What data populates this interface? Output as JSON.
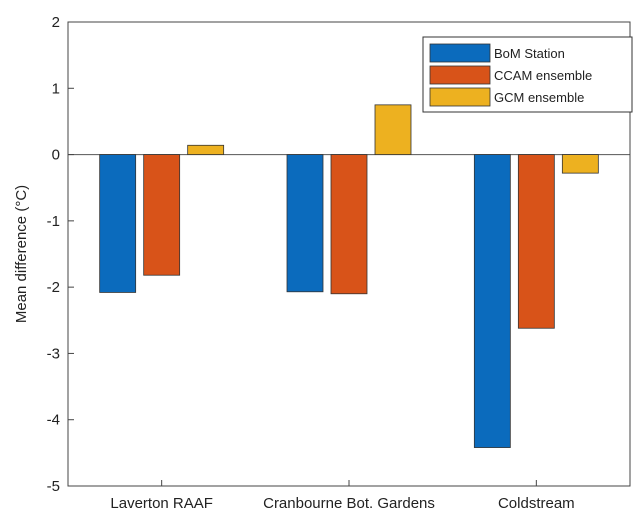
{
  "chart_data": {
    "type": "bar",
    "title": "",
    "xlabel": "",
    "ylabel": "Mean difference (°C)",
    "ylim": [
      -5,
      2
    ],
    "yticks": [
      2,
      1,
      0,
      -1,
      -2,
      -3,
      -4,
      -5
    ],
    "categories": [
      "Laverton RAAF",
      "Cranbourne Bot. Gardens",
      "Coldstream"
    ],
    "series": [
      {
        "name": "BoM Station",
        "color": "#0b6bbd",
        "values": [
          -2.08,
          -2.07,
          -4.42
        ]
      },
      {
        "name": "CCAM ensemble",
        "color": "#d85319",
        "values": [
          -1.82,
          -2.1,
          -2.62
        ]
      },
      {
        "name": "GCM ensemble",
        "color": "#edb120",
        "values": [
          0.14,
          0.75,
          -0.28
        ]
      }
    ],
    "legend_position": "top-right",
    "grid": false
  }
}
